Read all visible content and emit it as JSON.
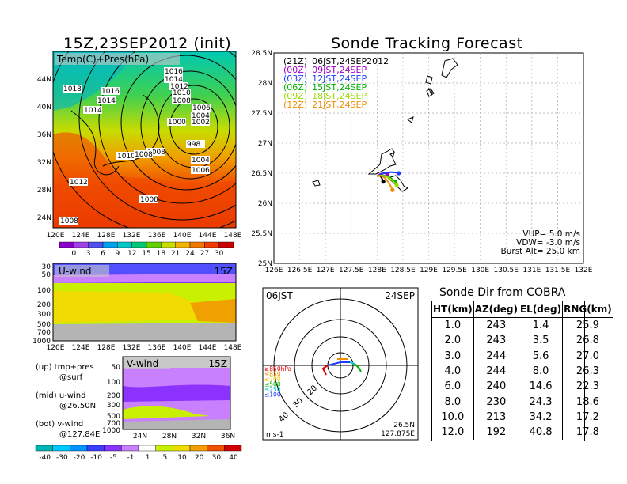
{
  "left_title": "15Z,23SEP2012 (init)",
  "right_title": "Sonde Tracking Forecast",
  "temp_map": {
    "label": "Temp(C)+Pres(hPa)",
    "lat_labels": [
      "44N",
      "40N",
      "36N",
      "32N",
      "28N",
      "24N"
    ],
    "lon_labels": [
      "120E",
      "124E",
      "128E",
      "132E",
      "136E",
      "140E",
      "144E",
      "148E"
    ],
    "isobar_labels": [
      "1018",
      "1016",
      "1014",
      "1014",
      "1016",
      "1014",
      "1012",
      "1010",
      "1008",
      "1006",
      "1004",
      "1002",
      "1000",
      "998",
      "1004",
      "1006",
      "1008",
      "1010",
      "1008",
      "1012",
      "1008",
      "1008"
    ],
    "colorbar_ticks": [
      "0",
      "3",
      "6",
      "9",
      "12",
      "15",
      "18",
      "21",
      "24",
      "27",
      "30"
    ],
    "colorbar_colors": [
      "#8a00c8",
      "#a040e8",
      "#5050f0",
      "#00a0f0",
      "#00c8c8",
      "#00c878",
      "#60d000",
      "#c8dc00",
      "#f0b400",
      "#f07800",
      "#f03c00",
      "#c80000"
    ]
  },
  "uwind_panel": {
    "label": "U-wind",
    "time": "15Z",
    "p_labels": [
      "30",
      "50",
      "100",
      "200",
      "300",
      "500",
      "700",
      "1000"
    ],
    "lon_labels": [
      "120E",
      "124E",
      "128E",
      "132E",
      "136E",
      "140E",
      "144E",
      "148E"
    ]
  },
  "vwind_panel": {
    "label": "V-wind",
    "time": "15Z",
    "p_labels": [
      "50",
      "100",
      "200",
      "300",
      "500",
      "700",
      "1000"
    ],
    "lat_labels": [
      "24N",
      "28N",
      "32N",
      "36N"
    ]
  },
  "legend_notes": [
    {
      "a": "(up) tmp+pres",
      "b": "@surf"
    },
    {
      "a": "(mid) u-wind",
      "b": "@26.50N"
    },
    {
      "a": "(bot) v-wind",
      "b": "@127.84E"
    }
  ],
  "wind_colorbar_ticks": [
    "-40",
    "-30",
    "-20",
    "-10",
    "-5",
    "-1",
    "1",
    "5",
    "10",
    "20",
    "30",
    "40"
  ],
  "wind_colorbar_colors": [
    "#00b4b4",
    "#00c8ff",
    "#0096ff",
    "#3c3cff",
    "#8c32ff",
    "#c880ff",
    "#ffffff",
    "#c8f000",
    "#f0dc00",
    "#f0a000",
    "#f05000",
    "#d20000"
  ],
  "track_map": {
    "lat_labels": [
      "28.5N",
      "28N",
      "27.5N",
      "27N",
      "26.5N",
      "26N",
      "25.5N",
      "25N"
    ],
    "lon_labels": [
      "126E",
      "126.5E",
      "127E",
      "127.5E",
      "128E",
      "128.5E",
      "129E",
      "129.5E",
      "130E",
      "130.5E",
      "131E",
      "131.5E",
      "132E"
    ],
    "legend": [
      {
        "code": "(21Z)",
        "text": "06JST,24SEP2012",
        "color": "#000000"
      },
      {
        "code": "(00Z)",
        "text": "09JST,24SEP",
        "color": "#a000c8"
      },
      {
        "code": "(03Z)",
        "text": "12JST,24SEP",
        "color": "#1e3cff"
      },
      {
        "code": "(06Z)",
        "text": "15JST,24SEP",
        "color": "#00b400"
      },
      {
        "code": "(09Z)",
        "text": "18JST,24SEP",
        "color": "#a0dc00"
      },
      {
        "code": "(12Z)",
        "text": "21JST,24SEP",
        "color": "#f08c00"
      }
    ],
    "params": [
      "VUP=  5.0  m/s",
      "VDW= -3.0  m/s",
      "Burst Alt=  25.0  km"
    ],
    "launch_point": {
      "lon": 128.0,
      "lat": 26.45
    },
    "tracks": [
      {
        "color": "#000000",
        "end": {
          "lon": 128.12,
          "lat": 26.36
        }
      },
      {
        "color": "#a000c8",
        "end": {
          "lon": 128.2,
          "lat": 26.48
        }
      },
      {
        "color": "#1e3cff",
        "end": {
          "lon": 128.42,
          "lat": 26.5
        }
      },
      {
        "color": "#00b400",
        "end": {
          "lon": 128.35,
          "lat": 26.36
        }
      },
      {
        "color": "#a0dc00",
        "end": {
          "lon": 128.38,
          "lat": 26.3
        }
      },
      {
        "color": "#f08c00",
        "end": {
          "lon": 128.3,
          "lat": 26.22
        }
      }
    ]
  },
  "polar": {
    "time": "06JST",
    "date": "24SEP",
    "ring_labels": [
      "20",
      "30",
      "40"
    ],
    "alt_legend": [
      {
        "text": "≥850hPa",
        "color": "#e00000"
      },
      {
        "text": "≤850",
        "color": "#f08c00"
      },
      {
        "text": "≤700",
        "color": "#f0c800"
      },
      {
        "text": "≤500",
        "color": "#00b400"
      },
      {
        "text": "≤250",
        "color": "#00c8c8"
      },
      {
        "text": "≤100",
        "color": "#1e3cff"
      }
    ],
    "scale_label": "ms-1",
    "loc_lat": "26.5N",
    "loc_lon": "127.875E"
  },
  "sonde_dir": {
    "title": "Sonde Dir from COBRA",
    "headers": [
      "HT(km)",
      "AZ(deg)",
      "EL(deg)",
      "RNG(km)"
    ],
    "rows": [
      [
        "1.0",
        "243",
        "1.4",
        "25.9"
      ],
      [
        "2.0",
        "243",
        "3.5",
        "26.8"
      ],
      [
        "3.0",
        "244",
        "5.6",
        "27.0"
      ],
      [
        "4.0",
        "244",
        "8.0",
        "26.3"
      ],
      [
        "6.0",
        "240",
        "14.6",
        "22.3"
      ],
      [
        "8.0",
        "230",
        "24.3",
        "18.6"
      ],
      [
        "10.0",
        "213",
        "34.2",
        "17.2"
      ],
      [
        "12.0",
        "192",
        "40.8",
        "17.8"
      ]
    ]
  }
}
